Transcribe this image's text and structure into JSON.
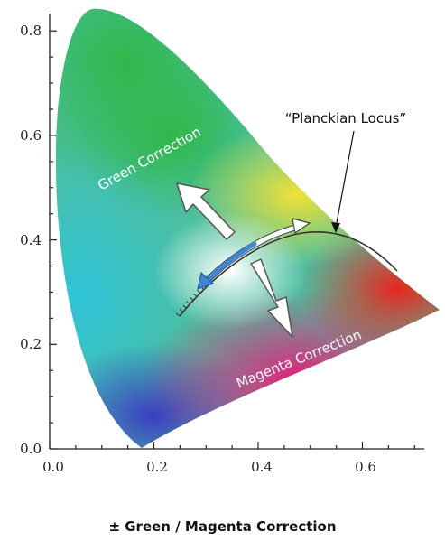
{
  "diagram": {
    "x_ticks": [
      "0.0",
      "0.2",
      "0.4",
      "0.6"
    ],
    "y_ticks": [
      "0.0",
      "0.2",
      "0.4",
      "0.6",
      "0.8"
    ],
    "x_range": [
      0.0,
      0.75
    ],
    "y_range": [
      0.0,
      0.85
    ],
    "green_label": "Green Correction",
    "magenta_label": "Magenta Correction",
    "locus_label": "“Planckian Locus”",
    "caption": "± Green / Magenta Correction",
    "colors": {
      "green": "#2fb84a",
      "magenta": "#e0237b",
      "red": "#e8261d",
      "yellow": "#f1e234",
      "blue": "#3a3fc2",
      "cyan": "#2fc3d8",
      "arrow_blue": "#3d86d8"
    }
  }
}
